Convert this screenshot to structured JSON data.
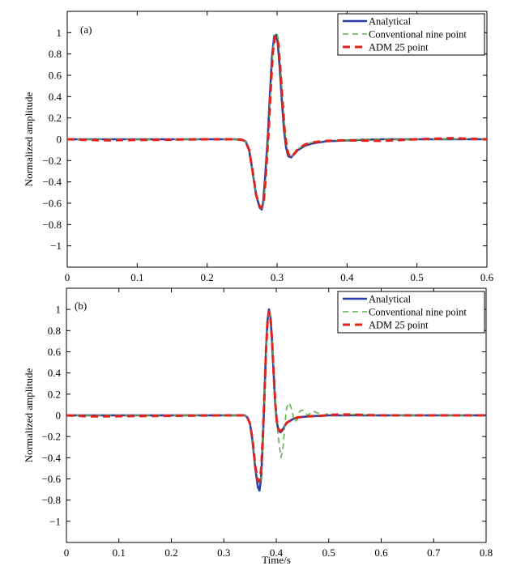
{
  "colors": {
    "analytical": "#2b3ea6",
    "conventional": "#5fb04a",
    "adm": "#e2231a",
    "axis": "#000000",
    "background": "#ffffff"
  },
  "chart_data": [
    {
      "type": "line",
      "panel_label": "(a)",
      "xlabel": "",
      "ylabel": "Normalized amplitude",
      "xlim": [
        0,
        0.6
      ],
      "ylim": [
        -1.2,
        1.2
      ],
      "xticks": [
        "0",
        "0.1",
        "0.2",
        "0.3",
        "0.4",
        "0.5",
        "0.6"
      ],
      "yticks": [
        "-1",
        "-0.8",
        "-0.6",
        "-0.4",
        "-0.2",
        "0",
        "0.2",
        "0.4",
        "0.6",
        "0.8",
        "1"
      ],
      "grid": false,
      "legend_position": "top-right",
      "series": [
        {
          "name": "Analytical",
          "style": "solid",
          "x": [
            0,
            0.2,
            0.24,
            0.25,
            0.255,
            0.26,
            0.265,
            0.27,
            0.275,
            0.278,
            0.28,
            0.283,
            0.287,
            0.29,
            0.293,
            0.296,
            0.299,
            0.301,
            0.304,
            0.307,
            0.31,
            0.313,
            0.316,
            0.32,
            0.323,
            0.33,
            0.34,
            0.35,
            0.37,
            0.4,
            0.45,
            0.5,
            0.6
          ],
          "y": [
            0,
            0,
            0,
            -0.005,
            -0.02,
            -0.1,
            -0.3,
            -0.52,
            -0.64,
            -0.66,
            -0.6,
            -0.35,
            0.05,
            0.45,
            0.8,
            0.97,
            0.98,
            0.9,
            0.65,
            0.35,
            0.08,
            -0.08,
            -0.16,
            -0.17,
            -0.15,
            -0.1,
            -0.06,
            -0.04,
            -0.02,
            -0.01,
            0,
            0,
            0
          ]
        },
        {
          "name": "Conventional nine point",
          "style": "dashed",
          "x": [
            0,
            0.2,
            0.24,
            0.25,
            0.255,
            0.26,
            0.265,
            0.27,
            0.275,
            0.278,
            0.281,
            0.284,
            0.288,
            0.291,
            0.294,
            0.297,
            0.3,
            0.302,
            0.305,
            0.308,
            0.311,
            0.314,
            0.317,
            0.321,
            0.324,
            0.33,
            0.34,
            0.35,
            0.37,
            0.4,
            0.45,
            0.5,
            0.6
          ],
          "y": [
            0,
            0,
            0,
            -0.005,
            -0.02,
            -0.09,
            -0.28,
            -0.5,
            -0.63,
            -0.65,
            -0.6,
            -0.36,
            0.05,
            0.47,
            0.82,
            0.98,
            1.0,
            0.92,
            0.68,
            0.38,
            0.1,
            -0.07,
            -0.15,
            -0.17,
            -0.14,
            -0.09,
            -0.05,
            -0.03,
            -0.015,
            -0.005,
            0,
            0,
            0
          ]
        },
        {
          "name": "ADM 25 point",
          "style": "dashed",
          "x": [
            0,
            0.05,
            0.2,
            0.24,
            0.25,
            0.255,
            0.26,
            0.265,
            0.27,
            0.275,
            0.278,
            0.281,
            0.284,
            0.288,
            0.291,
            0.294,
            0.297,
            0.3,
            0.302,
            0.305,
            0.308,
            0.311,
            0.314,
            0.317,
            0.321,
            0.324,
            0.33,
            0.34,
            0.35,
            0.37,
            0.4,
            0.45,
            0.5,
            0.55,
            0.6
          ],
          "y": [
            0,
            -0.01,
            0,
            0,
            -0.005,
            -0.02,
            -0.1,
            -0.3,
            -0.52,
            -0.63,
            -0.64,
            -0.58,
            -0.33,
            0.08,
            0.48,
            0.82,
            0.96,
            0.96,
            0.88,
            0.63,
            0.33,
            0.07,
            -0.08,
            -0.15,
            -0.17,
            -0.14,
            -0.09,
            -0.05,
            -0.03,
            -0.015,
            -0.01,
            -0.015,
            0,
            0.01,
            0
          ]
        }
      ]
    },
    {
      "type": "line",
      "panel_label": "(b)",
      "xlabel": "Time/s",
      "ylabel": "Normalized amplitude",
      "xlim": [
        0,
        0.8
      ],
      "ylim": [
        -1.2,
        1.2
      ],
      "xticks": [
        "0",
        "0.1",
        "0.2",
        "0.3",
        "0.4",
        "0.5",
        "0.6",
        "0.7",
        "0.8"
      ],
      "yticks": [
        "-1",
        "-0.8",
        "-0.6",
        "-0.4",
        "-0.2",
        "0",
        "0.2",
        "0.4",
        "0.6",
        "0.8",
        "1"
      ],
      "grid": false,
      "legend_position": "top-right",
      "series": [
        {
          "name": "Analytical",
          "style": "solid",
          "x": [
            0,
            0.3,
            0.33,
            0.34,
            0.345,
            0.35,
            0.355,
            0.36,
            0.365,
            0.368,
            0.371,
            0.374,
            0.377,
            0.38,
            0.383,
            0.386,
            0.389,
            0.392,
            0.395,
            0.398,
            0.401,
            0.404,
            0.408,
            0.412,
            0.416,
            0.42,
            0.43,
            0.44,
            0.46,
            0.5,
            0.6,
            0.8
          ],
          "y": [
            0,
            0,
            0,
            0,
            -0.02,
            -0.08,
            -0.25,
            -0.5,
            -0.68,
            -0.71,
            -0.6,
            -0.3,
            0.1,
            0.55,
            0.88,
            1.0,
            0.93,
            0.7,
            0.4,
            0.12,
            -0.06,
            -0.14,
            -0.16,
            -0.14,
            -0.1,
            -0.07,
            -0.04,
            -0.02,
            -0.01,
            0,
            0,
            0
          ]
        },
        {
          "name": "Conventional nine point",
          "style": "dashed",
          "x": [
            0,
            0.3,
            0.33,
            0.34,
            0.345,
            0.35,
            0.355,
            0.36,
            0.365,
            0.369,
            0.372,
            0.375,
            0.378,
            0.381,
            0.384,
            0.387,
            0.39,
            0.393,
            0.396,
            0.399,
            0.402,
            0.405,
            0.409,
            0.413,
            0.417,
            0.42,
            0.425,
            0.43,
            0.435,
            0.44,
            0.445,
            0.45,
            0.46,
            0.47,
            0.48,
            0.49,
            0.5,
            0.52,
            0.55,
            0.6,
            0.8
          ],
          "y": [
            0,
            0,
            0,
            0,
            -0.02,
            -0.07,
            -0.22,
            -0.45,
            -0.62,
            -0.65,
            -0.55,
            -0.25,
            0.15,
            0.6,
            0.9,
            1.0,
            0.92,
            0.68,
            0.38,
            0.1,
            -0.1,
            -0.25,
            -0.4,
            -0.3,
            -0.05,
            0.08,
            0.12,
            0.04,
            -0.06,
            -0.04,
            0.04,
            0.05,
            0.0,
            0.04,
            0.02,
            0.0,
            0.02,
            0.0,
            0.01,
            0,
            0
          ]
        },
        {
          "name": "ADM 25 point",
          "style": "dashed",
          "x": [
            0,
            0.05,
            0.3,
            0.33,
            0.34,
            0.345,
            0.35,
            0.355,
            0.36,
            0.365,
            0.368,
            0.371,
            0.374,
            0.377,
            0.38,
            0.383,
            0.386,
            0.389,
            0.392,
            0.395,
            0.398,
            0.401,
            0.404,
            0.408,
            0.412,
            0.416,
            0.42,
            0.43,
            0.44,
            0.46,
            0.5,
            0.52,
            0.6,
            0.8
          ],
          "y": [
            0,
            -0.01,
            0,
            0,
            0,
            -0.02,
            -0.08,
            -0.24,
            -0.48,
            -0.62,
            -0.62,
            -0.52,
            -0.24,
            0.14,
            0.56,
            0.86,
            0.98,
            0.92,
            0.7,
            0.4,
            0.12,
            -0.05,
            -0.13,
            -0.15,
            -0.13,
            -0.1,
            -0.07,
            -0.04,
            -0.02,
            -0.01,
            0,
            0.01,
            0,
            0
          ]
        }
      ]
    }
  ]
}
